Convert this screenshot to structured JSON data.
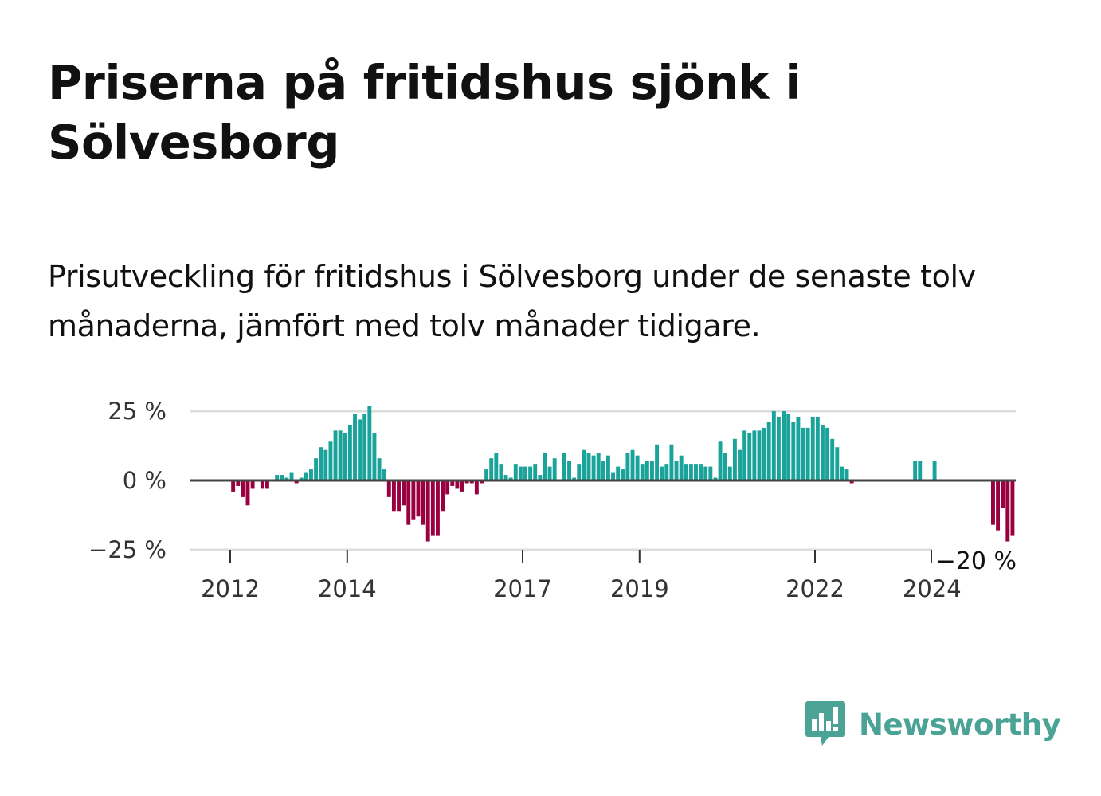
{
  "header": {
    "title": "Priserna på fritidshus sjönk i Sölvesborg",
    "subtitle": "Prisutveckling för fritidshus i Sölvesborg under de senaste tolv månaderna, jämfört med tolv månader tidigare."
  },
  "brand": {
    "name": "Newsworthy",
    "color": "#4aa394",
    "icon": "chart-bubble-icon"
  },
  "colors": {
    "positive": "#1aa39a",
    "negative": "#9a0040",
    "zero_line": "#444444",
    "grid": "#dddddd"
  },
  "chart_data": {
    "type": "bar",
    "ylim": [
      -25,
      25
    ],
    "y_ticks": [
      {
        "value": 25,
        "label": "25 %"
      },
      {
        "value": 0,
        "label": "0 %"
      },
      {
        "value": -25,
        "label": "−25 %"
      }
    ],
    "x_ticks": [
      {
        "value": 2012,
        "label": "2012"
      },
      {
        "value": 2014,
        "label": "2014"
      },
      {
        "value": 2017,
        "label": "2017"
      },
      {
        "value": 2019,
        "label": "2019"
      },
      {
        "value": 2022,
        "label": "2022"
      },
      {
        "value": 2024,
        "label": "2024"
      }
    ],
    "x_start": 2011.3,
    "bar_width_years": 0.0833,
    "values": [
      null,
      null,
      null,
      null,
      null,
      null,
      null,
      null,
      null,
      -4,
      -2,
      -6,
      -9,
      -3,
      0,
      -3,
      -3,
      0,
      2,
      2,
      1,
      3,
      -1,
      1,
      3,
      4,
      8,
      12,
      11,
      14,
      18,
      18,
      17,
      20,
      24,
      22,
      24,
      27,
      17,
      8,
      4,
      -6,
      -11,
      -11,
      -9,
      -16,
      -14,
      -13,
      -16,
      -22,
      -20,
      -20,
      -11,
      -5,
      -2,
      -3,
      -4,
      -1,
      -1,
      -5,
      -1,
      4,
      8,
      10,
      6,
      2,
      1,
      6,
      5,
      5,
      5,
      6,
      2,
      10,
      5,
      8,
      0,
      10,
      7,
      1,
      6,
      11,
      10,
      9,
      10,
      7,
      9,
      3,
      5,
      4,
      10,
      11,
      9,
      6,
      7,
      7,
      13,
      5,
      6,
      13,
      7,
      9,
      6,
      6,
      6,
      6,
      5,
      5,
      1,
      14,
      10,
      5,
      15,
      11,
      18,
      17,
      18,
      18,
      19,
      21,
      25,
      23,
      25,
      24,
      21,
      23,
      19,
      19,
      23,
      23,
      20,
      19,
      15,
      12,
      5,
      4,
      -1,
      0,
      0,
      0,
      0,
      0,
      0,
      0,
      0,
      0,
      0,
      0,
      0,
      7,
      7,
      0,
      0,
      7,
      0,
      0,
      0,
      0,
      0,
      0,
      0,
      0,
      0,
      0,
      0,
      -16,
      -18,
      -10,
      -22,
      -20
    ],
    "last_value_label": "−20 %"
  }
}
